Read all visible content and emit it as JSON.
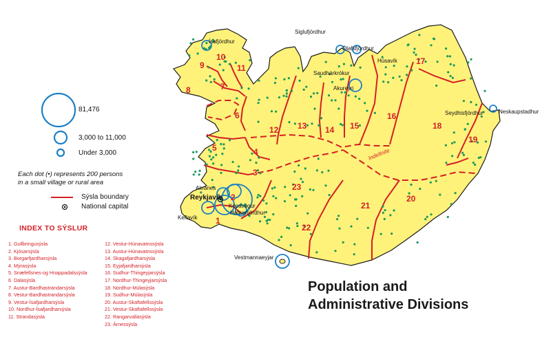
{
  "title": {
    "line1": "Population and",
    "line2": "Administrative Divisions"
  },
  "legend": {
    "large_circle_label": "81,476",
    "medium_circle_label": "3,000 to 11,000",
    "small_circle_label": "Under 3,000",
    "dot_note_line1": "Each dot (•) represents 200 persons",
    "dot_note_line2": "in a small village or rural area",
    "boundary_label": "Sýsla boundary",
    "capital_label": "National capital"
  },
  "index": {
    "title": "INDEX TO SÝSLUR",
    "col1": [
      "1. Gullbringusýsla",
      "2. Kjósarsýsla",
      "3. Borgarfjardharsýsla",
      "4. Mýrasýsla",
      "5. Snæfellsnes-og Hnappadalssýsla",
      "6. Dalasýsla",
      "7. Austur-Bardhastrandarsýsla",
      "8. Vestur-Bardhastrandarsýsla",
      "9. Vestur-Ísafjardharsýsla",
      "10. Nordhur-Ísafjardharsýsla",
      "11. Strandasýsla"
    ],
    "col2": [
      "12. Vestur-Húnavatnssýsla",
      "13. Austur-Húnavatnssýsla",
      "14. Skagafjardharsýsla",
      "15. Eyjafjardharsýsla",
      "16. Sudhur-Thingeyjarsýsla",
      "17. Nordhur-Thingeyjarsýsla",
      "18. Nordhur-Múlasýsla",
      "19. Sudhur-Múlasýsla",
      "20. Austur-Skaftafellssýsla",
      "21. Vestur-Skaftafellssýsla",
      "22. Rangarvallasýsla",
      "23. Árnessýsla"
    ]
  },
  "places": {
    "isafjordhur": "Ísafjördhur",
    "siglufjordhur": "Siglufjördhur",
    "olafsfjordhur": "Ólafsfjördhur",
    "husavik": "Húsavík",
    "saudharkrokur": "Saudhárkrókur",
    "akureyri": "Akureyri",
    "seydhisfjordhur": "Seydhisfjördhur",
    "neskaupstadhur": "Neskaupstadhur",
    "akranes": "Akranes",
    "reykjavik": "Reykjavík",
    "kopavogur": "Kópavogur",
    "hafnarfjordhur": "Hafnarfjördhur",
    "keflavik": "Keflavík",
    "vestmannaeyjar": "Vestmannaeyjar"
  },
  "indefinite_label": "Indefinite",
  "district_numbers": [
    "1",
    "2",
    "3",
    "4",
    "5",
    "6",
    "7",
    "8",
    "9",
    "10",
    "11",
    "12",
    "13",
    "14",
    "15",
    "16",
    "17",
    "18",
    "19",
    "20",
    "21",
    "22",
    "23"
  ],
  "colors": {
    "land": "#fff27a",
    "boundary": "#d31f26",
    "dots": "#1a9a5c",
    "circles": "#1b7fc4",
    "index_text": "#d31f26"
  }
}
